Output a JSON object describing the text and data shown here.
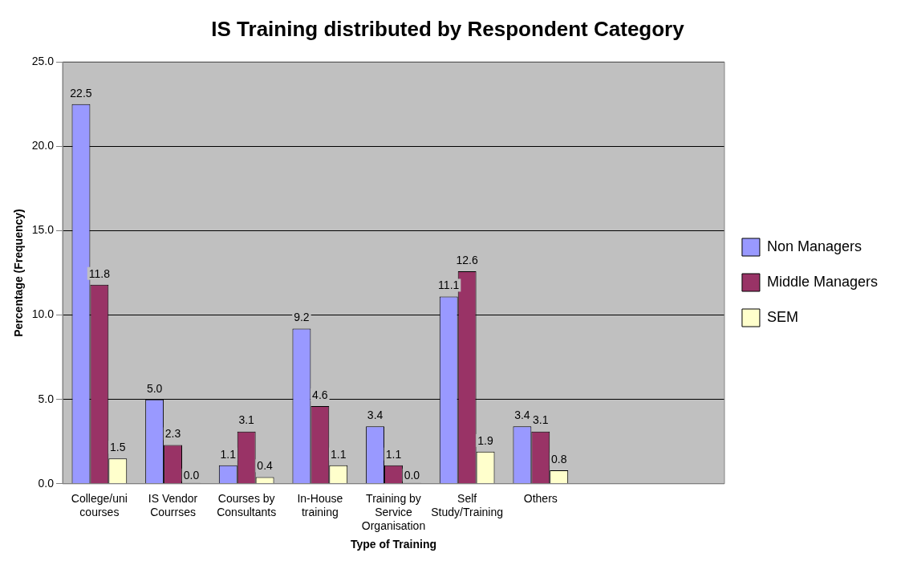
{
  "chart_data": {
    "type": "bar",
    "title": "IS Training distributed by Respondent Category",
    "xlabel": "Type of Training",
    "ylabel": "Percentage (Frequency)",
    "categories": [
      "College/uni courses",
      "IS Vendor Courrses",
      "Courses by Consultants",
      "In-House training",
      "Training by Service Organisation",
      "Self Study/Training",
      "Others",
      null,
      null
    ],
    "series": [
      {
        "name": "Non Managers",
        "color": "#9999ff",
        "values": [
          22.5,
          5.0,
          1.1,
          9.2,
          3.4,
          11.1,
          3.4,
          null,
          null
        ],
        "value_labels": [
          "22.5",
          "5.0",
          "1.1",
          "9.2",
          "3.4",
          "11.1",
          "3.4",
          null,
          null
        ]
      },
      {
        "name": "Middle Managers",
        "color": "#993366",
        "values": [
          11.8,
          2.3,
          3.1,
          4.6,
          1.1,
          12.6,
          3.1,
          null,
          null
        ],
        "value_labels": [
          "11.8",
          "2.3",
          "3.1",
          "4.6",
          "1.1",
          "12.6",
          "3.1",
          null,
          null
        ]
      },
      {
        "name": "SEM",
        "color": "#ffffcc",
        "values": [
          1.5,
          0.0,
          0.4,
          1.1,
          0.0,
          1.9,
          0.8,
          null,
          null
        ],
        "value_labels": [
          "1.5",
          "0.0",
          "0.4",
          "1.1",
          "0.0",
          "1.9",
          "0.8",
          null,
          null
        ]
      }
    ],
    "ylim": [
      0,
      25
    ],
    "yticks": [
      {
        "value": 0,
        "label": "0.0"
      },
      {
        "value": 5,
        "label": "5.0"
      },
      {
        "value": 10,
        "label": "10.0"
      },
      {
        "value": 15,
        "label": "15.0"
      },
      {
        "value": 20,
        "label": "20.0"
      },
      {
        "value": 25,
        "label": "25.0"
      }
    ],
    "grid": "y",
    "legend": "right"
  }
}
